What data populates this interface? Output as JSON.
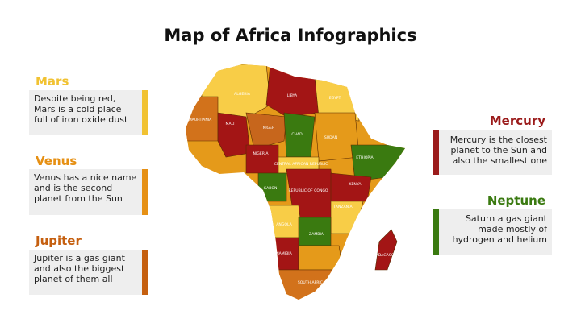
{
  "title": "Map of Africa Infographics",
  "cards": [
    {
      "heading": "Mars",
      "text": "Despite being red, Mars is a cold place full of iron oxide dust"
    },
    {
      "heading": "Venus",
      "text": "Venus has a nice name and is the second planet from the Sun"
    },
    {
      "heading": "Jupiter",
      "text": "Jupiter is a gas giant and also the biggest planet of them all"
    },
    {
      "heading": "Mercury",
      "text": "Mercury is the closest planet to the Sun and also the smallest one"
    },
    {
      "heading": "Neptune",
      "text": "Saturn a gas giant made mostly of hydrogen and helium"
    }
  ],
  "map": {
    "labels": [
      "ALGERIA",
      "LIBYA",
      "EGYPT",
      "MAURITANIA",
      "MALI",
      "NIGER",
      "CHAD",
      "SUDAN",
      "NIGERIA",
      "ETHIOPIA",
      "CENTRAL AFRICAN REPUBLIC",
      "GABON",
      "REPUBLIC OF CONGO",
      "KENYA",
      "TANZANIA",
      "ANGOLA",
      "ZAMBIA",
      "NAMIBIA",
      "MADAGASCAR",
      "SOUTH AFRICA"
    ]
  }
}
